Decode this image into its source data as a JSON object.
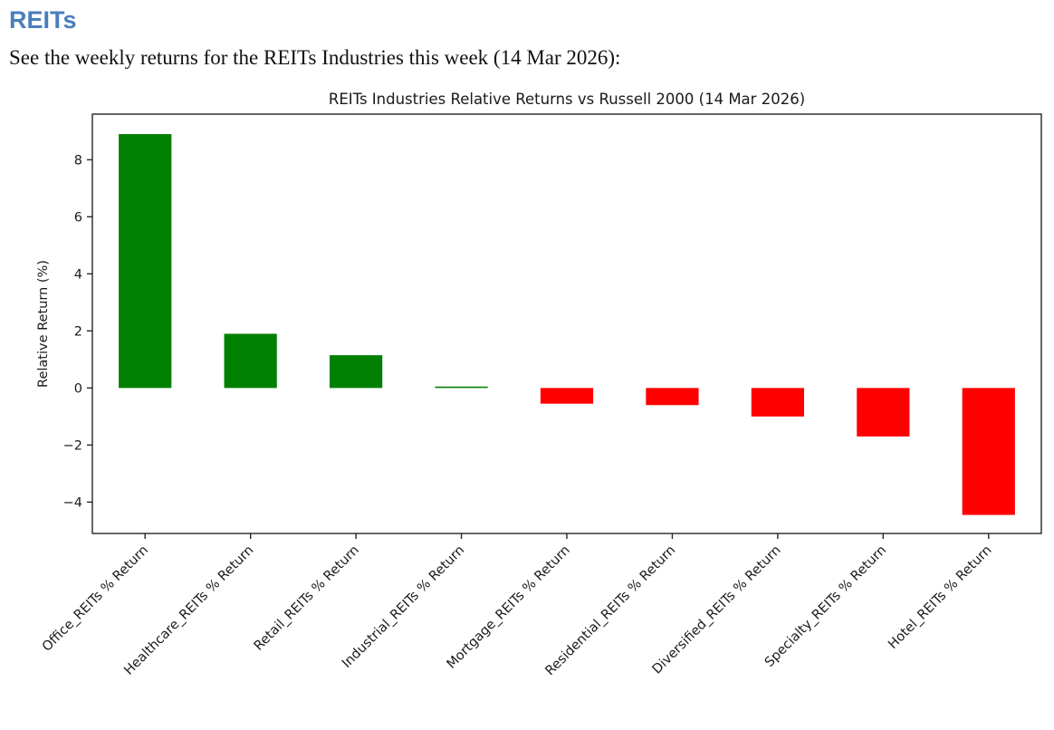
{
  "page": {
    "heading": "REITs",
    "heading_color": "#4a7ebc",
    "description": "See the weekly returns for the REITs Industries this week (14 Mar 2026):"
  },
  "chart_data": {
    "type": "bar",
    "title": "REITs Industries Relative Returns vs Russell 2000 (14 Mar 2026)",
    "xlabel": "",
    "ylabel": "Relative Return (%)",
    "categories": [
      "Office_REITs % Return",
      "Healthcare_REITs % Return",
      "Retail_REITs % Return",
      "Industrial_REITs % Return",
      "Mortgage_REITs % Return",
      "Residential_REITs % Return",
      "Diversified_REITs % Return",
      "Specialty_REITs % Return",
      "Hotel_REITs % Return"
    ],
    "values": [
      8.9,
      1.9,
      1.15,
      0.05,
      -0.55,
      -0.6,
      -1.0,
      -1.7,
      -4.45
    ],
    "yticks": [
      -4,
      -2,
      0,
      2,
      4,
      6,
      8
    ],
    "ylim": [
      -5.1,
      9.6
    ],
    "grid": false,
    "legend": null,
    "positive_color": "#008000",
    "negative_color": "#ff0000",
    "axis_color": "#262626",
    "tick_label_rotation_deg": 45
  }
}
